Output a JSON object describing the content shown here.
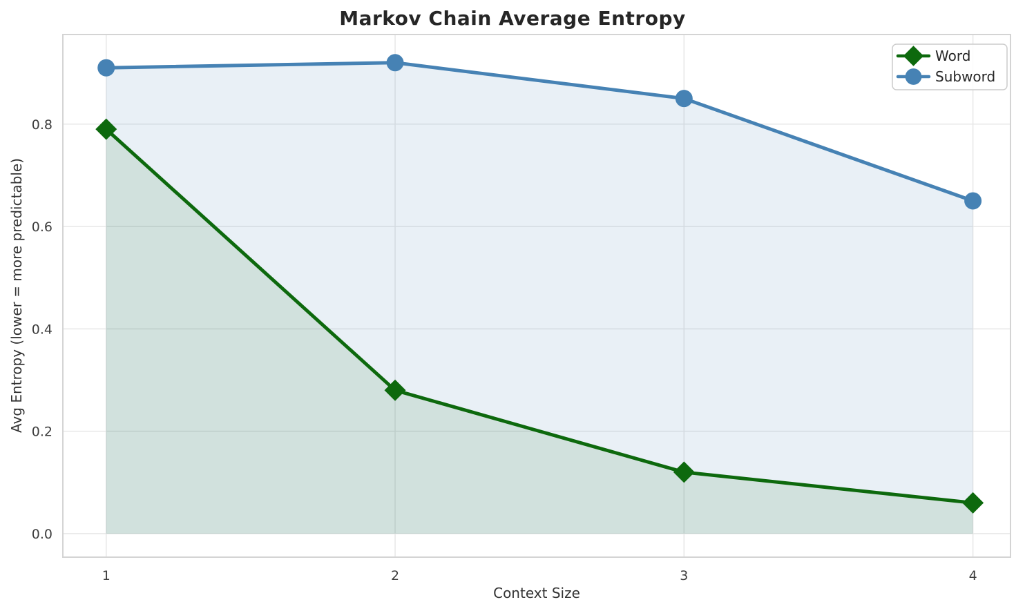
{
  "chart_data": {
    "type": "line",
    "title": "Markov Chain Average Entropy",
    "xlabel": "Context Size",
    "ylabel": "Avg Entropy (lower = more predictable)",
    "x": [
      1,
      2,
      3,
      4
    ],
    "series": [
      {
        "name": "Word",
        "values": [
          0.79,
          0.28,
          0.12,
          0.06
        ],
        "color": "#0d690d",
        "fill_color": "rgba(0,100,0,0.10)",
        "marker": "diamond"
      },
      {
        "name": "Subword",
        "values": [
          0.91,
          0.92,
          0.85,
          0.65
        ],
        "color": "#4682b4",
        "fill_color": "rgba(70,130,180,0.12)",
        "marker": "circle"
      }
    ],
    "x_ticks": [
      1,
      2,
      3,
      4
    ],
    "y_ticks": [
      0.0,
      0.2,
      0.4,
      0.6,
      0.8
    ],
    "xlim": [
      0.85,
      4.13
    ],
    "ylim": [
      -0.046,
      0.975
    ],
    "fill_to": 0,
    "grid": true,
    "legend_position": "upper right",
    "grid_color": "#e7e7e7",
    "border_color": "#d4d4d4",
    "tick_color": "#3d3d3d",
    "legend_border_color": "#cccccc",
    "legend_text_color": "#262626"
  }
}
